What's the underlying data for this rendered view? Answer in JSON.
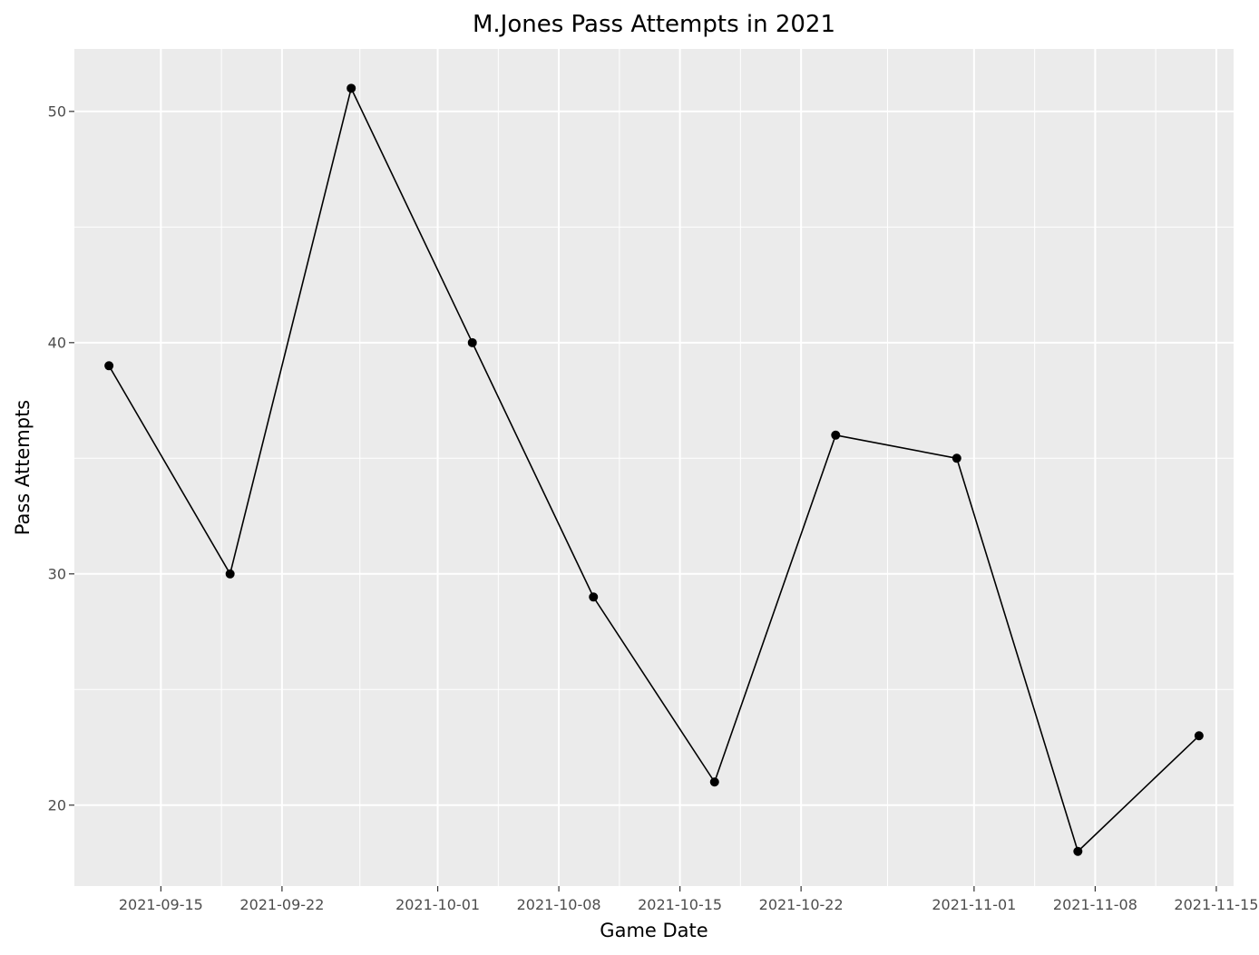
{
  "chart_data": {
    "type": "line",
    "title": "M.Jones Pass Attempts in 2021",
    "xlabel": "Game Date",
    "ylabel": "Pass Attempts",
    "x_scale": "date",
    "xlim": [
      "2021-09-10",
      "2021-11-16"
    ],
    "ylim": [
      16.5,
      52.7
    ],
    "x_ticks": [
      "2021-09-15",
      "2021-09-22",
      "2021-10-01",
      "2021-10-08",
      "2021-10-15",
      "2021-10-22",
      "2021-11-01",
      "2021-11-08",
      "2021-11-15"
    ],
    "y_ticks": [
      20,
      30,
      40,
      50
    ],
    "grid": true,
    "legend": "none",
    "series": [
      {
        "x": [
          "2021-09-12",
          "2021-09-19",
          "2021-09-26",
          "2021-10-03",
          "2021-10-10",
          "2021-10-17",
          "2021-10-24",
          "2021-10-31",
          "2021-11-07",
          "2021-11-14"
        ],
        "y": [
          39,
          30,
          51,
          40,
          29,
          21,
          36,
          35,
          18,
          23
        ]
      }
    ]
  },
  "colors": {
    "panel_background": "#ebebeb",
    "grid_major": "#ffffff",
    "line": "#000000",
    "points": "#000000"
  }
}
